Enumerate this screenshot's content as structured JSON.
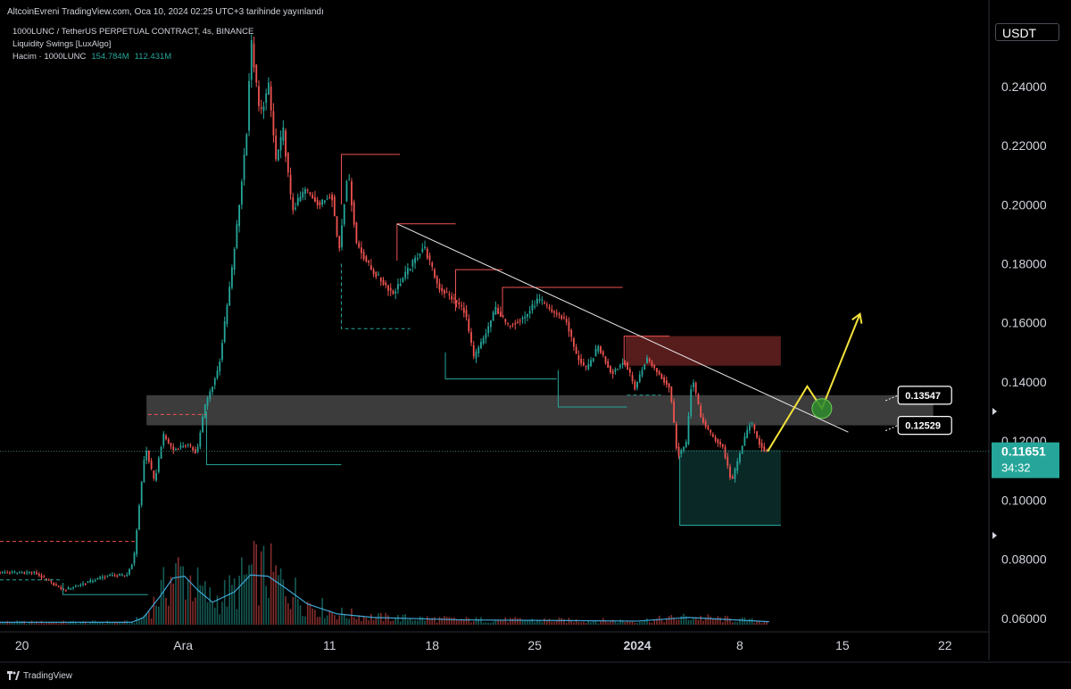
{
  "header": {
    "publish_line": "AltcoinEvreni TradingView.com, Oca 10, 2024 02:25 UTC+3 tarihinde yayınlandı"
  },
  "legend": {
    "symbol_line": "1000LUNC / TetherUS PERPETUAL CONTRACT, 4s, BINANCE",
    "indicator": "Liquidity Swings [LuxAlgo]",
    "volume_label": "Hacim · 1000LUNC",
    "volume_value_1": "154.784M",
    "volume_value_2": "112.431M"
  },
  "currency_button": "USDT",
  "footer": {
    "brand": "TradingView"
  },
  "colors": {
    "up": "#26a69a",
    "down": "#ef5350",
    "volume_line": "#3fa7d6",
    "trendline": "#e8e8e8",
    "projection": "#f5e33a",
    "zone_gray": "#505050",
    "zone_red": "#5c1d1d",
    "zone_green": "#0b2a28",
    "liquidity_red": "#ef5350",
    "liquidity_green": "#26a69a",
    "last_price_bg": "#26a69a"
  },
  "chart_data": {
    "type": "candlestick",
    "instrument": "1000LUNC / TetherUS PERPETUAL CONTRACT",
    "timeframe": "4s",
    "exchange": "BINANCE",
    "y_axis": {
      "range": [
        0.056,
        0.262
      ],
      "tick_labels": [
        "0.24000",
        "0.22000",
        "0.20000",
        "0.18000",
        "0.16000",
        "0.14000",
        "0.12000",
        "0.10000",
        "0.08000",
        "0.06000"
      ],
      "tick_values": [
        0.24,
        0.22,
        0.2,
        0.18,
        0.16,
        0.14,
        0.12,
        0.1,
        0.08,
        0.06
      ]
    },
    "x_axis": {
      "tick_labels": [
        "20",
        "Ara",
        "11",
        "18",
        "25",
        "2024",
        "8",
        "15",
        "22"
      ],
      "tick_days": [
        0,
        11,
        21,
        28,
        35,
        42,
        49,
        56,
        63
      ],
      "range_days": [
        -1.5,
        66
      ]
    },
    "last_price": {
      "value": 0.11651,
      "label": "0.11651",
      "countdown": "34:32"
    },
    "price_path": [
      {
        "day": -1.5,
        "price": 0.0755
      },
      {
        "day": 1.0,
        "price": 0.0755
      },
      {
        "day": 3.0,
        "price": 0.0695
      },
      {
        "day": 6.0,
        "price": 0.0745
      },
      {
        "day": 7.3,
        "price": 0.0745
      },
      {
        "day": 7.8,
        "price": 0.08
      },
      {
        "day": 8.2,
        "price": 0.1
      },
      {
        "day": 8.6,
        "price": 0.118
      },
      {
        "day": 9.2,
        "price": 0.106
      },
      {
        "day": 9.8,
        "price": 0.122
      },
      {
        "day": 10.5,
        "price": 0.117
      },
      {
        "day": 11.4,
        "price": 0.119
      },
      {
        "day": 12.1,
        "price": 0.116
      },
      {
        "day": 12.6,
        "price": 0.131
      },
      {
        "day": 13.6,
        "price": 0.145
      },
      {
        "day": 14.5,
        "price": 0.178
      },
      {
        "day": 15.0,
        "price": 0.2
      },
      {
        "day": 15.5,
        "price": 0.225
      },
      {
        "day": 15.8,
        "price": 0.256
      },
      {
        "day": 16.4,
        "price": 0.23
      },
      {
        "day": 17.0,
        "price": 0.24
      },
      {
        "day": 17.5,
        "price": 0.215
      },
      {
        "day": 18.0,
        "price": 0.225
      },
      {
        "day": 18.6,
        "price": 0.198
      },
      {
        "day": 19.5,
        "price": 0.205
      },
      {
        "day": 20.5,
        "price": 0.2
      },
      {
        "day": 21.3,
        "price": 0.204
      },
      {
        "day": 21.8,
        "price": 0.184
      },
      {
        "day": 22.4,
        "price": 0.212
      },
      {
        "day": 23.0,
        "price": 0.187
      },
      {
        "day": 24.0,
        "price": 0.178
      },
      {
        "day": 25.5,
        "price": 0.17
      },
      {
        "day": 26.8,
        "price": 0.18
      },
      {
        "day": 27.6,
        "price": 0.186
      },
      {
        "day": 28.6,
        "price": 0.172
      },
      {
        "day": 29.6,
        "price": 0.168
      },
      {
        "day": 30.4,
        "price": 0.164
      },
      {
        "day": 31.0,
        "price": 0.148
      },
      {
        "day": 31.8,
        "price": 0.156
      },
      {
        "day": 32.5,
        "price": 0.165
      },
      {
        "day": 33.3,
        "price": 0.159
      },
      {
        "day": 34.5,
        "price": 0.162
      },
      {
        "day": 35.4,
        "price": 0.168
      },
      {
        "day": 36.3,
        "price": 0.164
      },
      {
        "day": 37.3,
        "price": 0.161
      },
      {
        "day": 38.0,
        "price": 0.149
      },
      {
        "day": 38.7,
        "price": 0.144
      },
      {
        "day": 39.5,
        "price": 0.152
      },
      {
        "day": 40.4,
        "price": 0.143
      },
      {
        "day": 41.3,
        "price": 0.147
      },
      {
        "day": 42.0,
        "price": 0.138
      },
      {
        "day": 42.8,
        "price": 0.148
      },
      {
        "day": 43.6,
        "price": 0.143
      },
      {
        "day": 44.4,
        "price": 0.138
      },
      {
        "day": 44.9,
        "price": 0.115
      },
      {
        "day": 45.5,
        "price": 0.119
      },
      {
        "day": 45.9,
        "price": 0.142
      },
      {
        "day": 46.5,
        "price": 0.128
      },
      {
        "day": 47.2,
        "price": 0.122
      },
      {
        "day": 48.0,
        "price": 0.118
      },
      {
        "day": 48.6,
        "price": 0.106
      },
      {
        "day": 49.3,
        "price": 0.118
      },
      {
        "day": 49.9,
        "price": 0.127
      },
      {
        "day": 50.4,
        "price": 0.12
      },
      {
        "day": 50.9,
        "price": 0.1165
      }
    ],
    "volume": {
      "moving_average_path": [
        {
          "day": -1.5,
          "rel": 0.004
        },
        {
          "day": 7.5,
          "rel": 0.004
        },
        {
          "day": 8.3,
          "rel": 0.012
        },
        {
          "day": 9.4,
          "rel": 0.046
        },
        {
          "day": 10.3,
          "rel": 0.077
        },
        {
          "day": 11.1,
          "rel": 0.08
        },
        {
          "day": 12.0,
          "rel": 0.057
        },
        {
          "day": 13.0,
          "rel": 0.037
        },
        {
          "day": 14.5,
          "rel": 0.054
        },
        {
          "day": 15.6,
          "rel": 0.082
        },
        {
          "day": 16.8,
          "rel": 0.08
        },
        {
          "day": 17.9,
          "rel": 0.062
        },
        {
          "day": 19.5,
          "rel": 0.034
        },
        {
          "day": 21.5,
          "rel": 0.018
        },
        {
          "day": 24.0,
          "rel": 0.012
        },
        {
          "day": 30.0,
          "rel": 0.008
        },
        {
          "day": 42.0,
          "rel": 0.006
        },
        {
          "day": 45.5,
          "rel": 0.012
        },
        {
          "day": 51.0,
          "rel": 0.005
        }
      ]
    },
    "zones": [
      {
        "name": "resistance-band",
        "day_start": 8.5,
        "day_end": 62.2,
        "price_top": 0.1355,
        "price_bottom": 0.1253
      },
      {
        "name": "supply-zone",
        "day_start": 41.2,
        "day_end": 51.8,
        "price_top": 0.1555,
        "price_bottom": 0.1455
      },
      {
        "name": "demand-box",
        "day_start": 44.9,
        "day_end": 51.8,
        "price_top": 0.117,
        "price_bottom": 0.0915
      }
    ],
    "trendline": {
      "start": {
        "day": 25.6,
        "price": 0.1935
      },
      "end": {
        "day": 56.4,
        "price": 0.123
      }
    },
    "liquidity_levels": [
      {
        "kind": "high",
        "day_start": 21.8,
        "day_end": 25.8,
        "price": 0.217,
        "drop_to": 0.2
      },
      {
        "kind": "high",
        "day_start": 25.6,
        "day_end": 29.6,
        "price": 0.1935,
        "drop_to": 0.181
      },
      {
        "kind": "high",
        "day_start": 29.6,
        "day_end": 32.8,
        "price": 0.178,
        "drop_to": 0.164
      },
      {
        "kind": "high",
        "day_start": 32.8,
        "day_end": 41.0,
        "price": 0.172,
        "drop_to": 0.162
      },
      {
        "kind": "high",
        "day_start": 41.1,
        "day_end": 44.2,
        "price": 0.1555,
        "drop_to": 0.146
      },
      {
        "kind": "high",
        "day_start": 8.6,
        "day_end": 12.6,
        "price": 0.129,
        "dashed": true
      },
      {
        "kind": "high",
        "day_start": -1.5,
        "day_end": 7.8,
        "price": 0.086,
        "dashed": true
      },
      {
        "kind": "low",
        "day_start": 12.6,
        "day_end": 21.8,
        "price": 0.112,
        "rise_to": 0.13
      },
      {
        "kind": "low",
        "day_start": 21.8,
        "day_end": 26.5,
        "price": 0.158,
        "rise_to": 0.18,
        "dashed": true
      },
      {
        "kind": "low",
        "day_start": 28.9,
        "day_end": 36.5,
        "price": 0.141,
        "rise_to": 0.15
      },
      {
        "kind": "low",
        "day_start": 36.6,
        "day_end": 41.3,
        "price": 0.1315,
        "rise_to": 0.144
      },
      {
        "kind": "low",
        "day_start": 41.3,
        "day_end": 43.6,
        "price": 0.1355,
        "dashed": true
      },
      {
        "kind": "low",
        "day_start": 44.9,
        "day_end": 51.8,
        "price": 0.0915,
        "rise_to": 0.115
      },
      {
        "kind": "low",
        "day_start": 2.8,
        "day_end": 8.6,
        "price": 0.068,
        "rise_to": 0.072
      },
      {
        "kind": "low",
        "day_start": -1.5,
        "day_end": 2.8,
        "price": 0.073,
        "dashed": true
      }
    ],
    "projection_path": [
      {
        "day": 50.9,
        "price": 0.1165
      },
      {
        "day": 53.6,
        "price": 0.1385
      },
      {
        "day": 54.6,
        "price": 0.131
      },
      {
        "day": 57.2,
        "price": 0.163
      }
    ],
    "target_marker": {
      "day": 54.6,
      "price": 0.131
    },
    "price_labels": [
      {
        "label": "0.13547",
        "value": 0.13547,
        "day": 59.8
      },
      {
        "label": "0.12529",
        "value": 0.12529,
        "day": 59.8
      }
    ],
    "grid": false,
    "legend_placement": "top-left"
  }
}
